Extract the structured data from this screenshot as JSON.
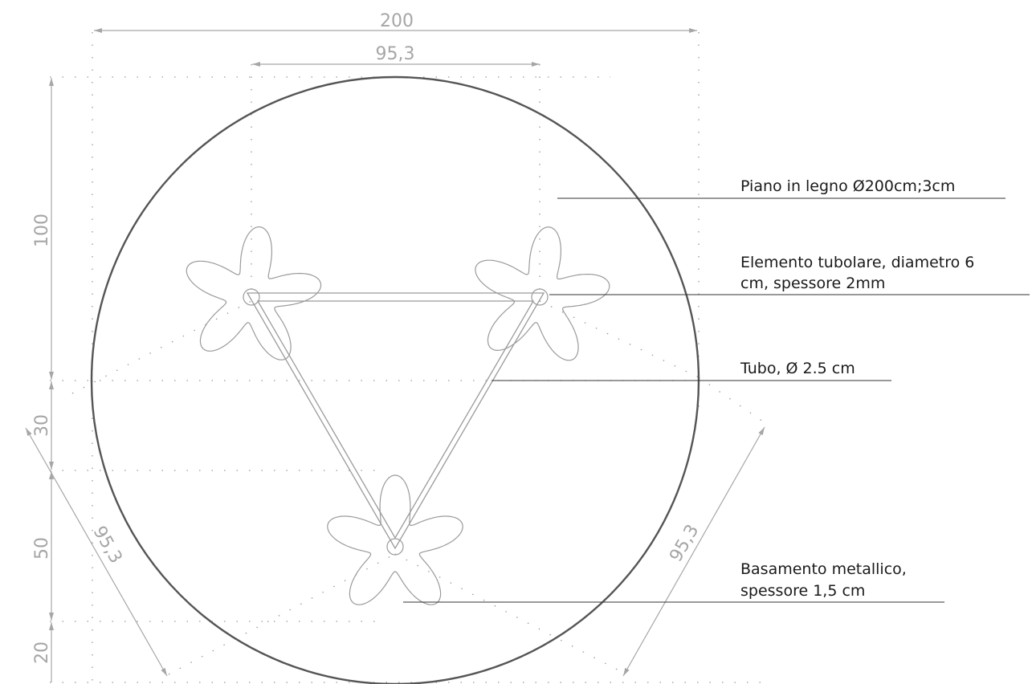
{
  "dimensions": {
    "total_width": "200",
    "inner_width": "95,3",
    "v_upper": "100",
    "v_30": "30",
    "v_50": "50",
    "v_20": "20",
    "diag_left": "95,3",
    "diag_right": "95,3"
  },
  "labels": {
    "piano": "Piano in legno Ø200cm;3cm",
    "elemento_line1": "Elemento tubolare, diametro 6",
    "elemento_line2": "cm, spessore 2mm",
    "tubo": "Tubo, Ø 2.5 cm",
    "basamento_line1": "Basamento metallico,",
    "basamento_line2": "spessore 1,5 cm"
  },
  "colors": {
    "circle": "#555555",
    "dimension": "#a6a6a6",
    "part_outline": "#9a9a9a",
    "leader": "#333333",
    "text": "#1a1a1a"
  }
}
